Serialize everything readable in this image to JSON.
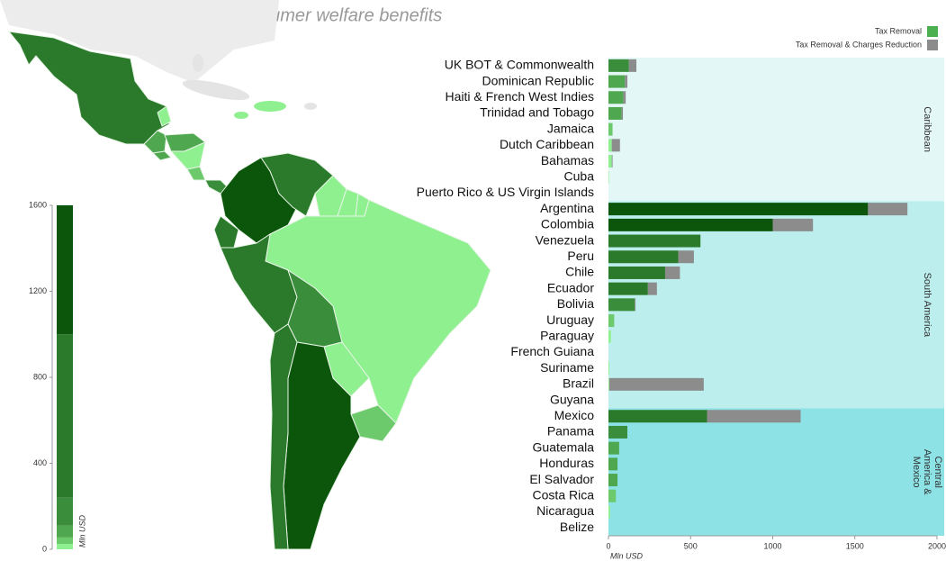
{
  "chart_data": {
    "type": "bar",
    "title": "Aggregate consumer welfare benefits",
    "xlabel": "Mln USD",
    "xlim": [
      0,
      2000
    ],
    "xticks": [
      0,
      500,
      1000,
      1500,
      2000
    ],
    "groups": [
      {
        "name_lines": [
          "Caribbean"
        ],
        "color": "#e4f7f7",
        "categories": [
          "UK BOT & Commonwealth",
          "Dominican Republic",
          "Haiti & French West Indies",
          "Trinidad and Tobago",
          "Jamaica",
          "Dutch Caribbean",
          "Bahamas",
          "Cuba",
          "Puerto Rico & US Virgin Islands"
        ]
      },
      {
        "name_lines": [
          "South America"
        ],
        "color": "#bdeeee",
        "categories": [
          "Argentina",
          "Colombia",
          "Venezuela",
          "Peru",
          "Chile",
          "Ecuador",
          "Bolivia",
          "Uruguay",
          "Paraguay",
          "French Guiana",
          "Suriname",
          "Brazil",
          "Guyana"
        ]
      },
      {
        "name_lines": [
          "Central",
          "America &",
          "Mexico"
        ],
        "color": "#8ce2e5",
        "categories": [
          "Mexico",
          "Panama",
          "Guatemala",
          "Honduras",
          "El Salvador",
          "Costa Rica",
          "Nicaragua",
          "Belize"
        ]
      }
    ],
    "series": [
      {
        "name": "Tax Removal",
        "color": "#4caf50",
        "values": [
          125,
          100,
          90,
          80,
          25,
          20,
          20,
          3,
          0,
          1580,
          1000,
          560,
          425,
          345,
          240,
          160,
          35,
          15,
          0,
          5,
          5,
          0,
          600,
          115,
          65,
          55,
          55,
          45,
          10,
          0
        ]
      },
      {
        "name": "Tax Removal & Charges Reduction",
        "color": "#8c8c8c",
        "values": [
          45,
          15,
          15,
          8,
          0,
          50,
          5,
          0,
          0,
          240,
          245,
          0,
          95,
          90,
          55,
          5,
          0,
          0,
          0,
          0,
          575,
          0,
          570,
          0,
          0,
          0,
          0,
          0,
          0,
          0
        ]
      }
    ],
    "color_scale": {
      "label": "Mln USD",
      "ylim": [
        0,
        1600
      ],
      "yticks": [
        0,
        400,
        800,
        1200,
        1600
      ],
      "breaks": [
        0,
        25,
        55,
        110,
        240,
        1000,
        1600
      ],
      "colors": [
        "#8ff08f",
        "#6cc96c",
        "#4fa84f",
        "#3a8d3a",
        "#2b7a2b",
        "#0b560b"
      ]
    }
  }
}
